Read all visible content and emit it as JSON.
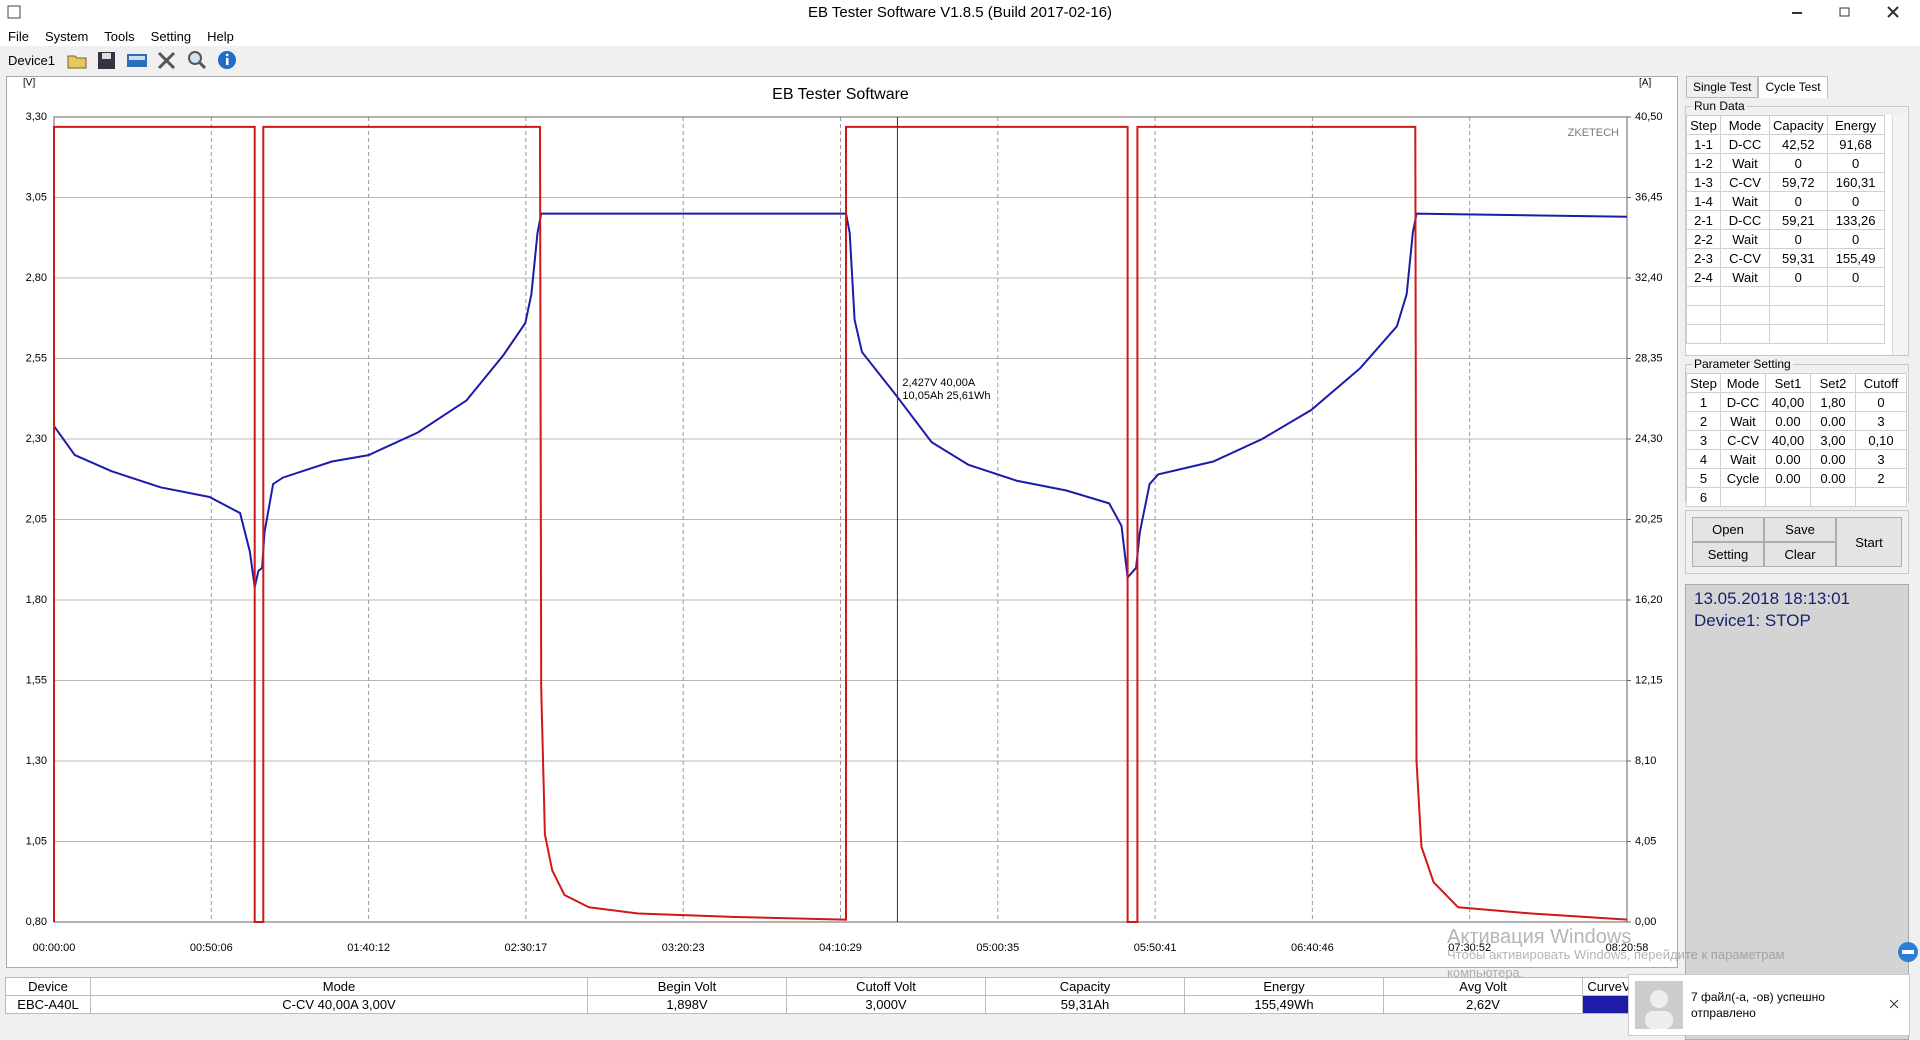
{
  "window": {
    "title": "EB Tester Software V1.8.5 (Build 2017-02-16)"
  },
  "menu": [
    "File",
    "System",
    "Tools",
    "Setting",
    "Help"
  ],
  "toolbar": {
    "device": "Device1"
  },
  "chart_data": {
    "type": "line",
    "title": "EB Tester Software",
    "watermark": "ZKETECH",
    "y_label": "[V]",
    "y2_label": "[A]",
    "xlim": [
      0,
      30058
    ],
    "xticks": [
      {
        "value": 0,
        "label": "00:00:00"
      },
      {
        "value": 3006,
        "label": "00:50:06"
      },
      {
        "value": 6012,
        "label": "01:40:12"
      },
      {
        "value": 9017,
        "label": "02:30:17"
      },
      {
        "value": 12023,
        "label": "03:20:23"
      },
      {
        "value": 15029,
        "label": "04:10:29"
      },
      {
        "value": 18035,
        "label": "05:00:35"
      },
      {
        "value": 21041,
        "label": "05:50:41"
      },
      {
        "value": 24046,
        "label": "06:40:46"
      },
      {
        "value": 27052,
        "label": "07:30:52"
      },
      {
        "value": 30058,
        "label": "08:20:58"
      }
    ],
    "ylim": [
      0.8,
      3.3
    ],
    "yticks": [
      {
        "value": 0.8,
        "label": "0,80"
      },
      {
        "value": 1.05,
        "label": "1,05"
      },
      {
        "value": 1.3,
        "label": "1,30"
      },
      {
        "value": 1.55,
        "label": "1,55"
      },
      {
        "value": 1.8,
        "label": "1,80"
      },
      {
        "value": 2.05,
        "label": "2,05"
      },
      {
        "value": 2.3,
        "label": "2,30"
      },
      {
        "value": 2.55,
        "label": "2,55"
      },
      {
        "value": 2.8,
        "label": "2,80"
      },
      {
        "value": 3.05,
        "label": "3,05"
      },
      {
        "value": 3.3,
        "label": "3,30"
      }
    ],
    "y2lim": [
      0,
      40.5
    ],
    "y2ticks": [
      {
        "value": 0,
        "label": "0,00"
      },
      {
        "value": 4.05,
        "label": "4,05"
      },
      {
        "value": 8.1,
        "label": "8,10"
      },
      {
        "value": 12.15,
        "label": "12,15"
      },
      {
        "value": 16.2,
        "label": "16,20"
      },
      {
        "value": 20.25,
        "label": "20,25"
      },
      {
        "value": 24.3,
        "label": "24,30"
      },
      {
        "value": 28.35,
        "label": "28,35"
      },
      {
        "value": 32.4,
        "label": "32,40"
      },
      {
        "value": 36.45,
        "label": "36,45"
      },
      {
        "value": 40.5,
        "label": "40,50"
      }
    ],
    "grid": true,
    "series": [
      {
        "color": "#1c1ca8",
        "x": [
          0,
          398,
          1099,
          2035,
          2971,
          3556,
          3743,
          3836,
          3906,
          3977,
          4023,
          4187,
          4374,
          5310,
          6012,
          6947,
          7883,
          8585,
          9006,
          9123,
          9240,
          9310,
          15134,
          15205,
          15298,
          15439,
          16070,
          16772,
          17474,
          18410,
          19345,
          20164,
          20398,
          20515,
          20678,
          20749,
          20936,
          21099,
          22152,
          23088,
          24023,
          24959,
          25661,
          25848,
          25965,
          26035,
          30058
        ],
        "values": [
          2.34,
          2.25,
          2.2,
          2.15,
          2.12,
          2.07,
          1.95,
          1.84,
          1.89,
          1.9,
          2.01,
          2.16,
          2.18,
          2.23,
          2.25,
          2.32,
          2.42,
          2.56,
          2.66,
          2.75,
          2.94,
          3.0,
          3.0,
          2.94,
          2.67,
          2.57,
          2.44,
          2.29,
          2.22,
          2.17,
          2.14,
          2.1,
          2.03,
          1.87,
          1.9,
          2.01,
          2.16,
          2.19,
          2.23,
          2.3,
          2.39,
          2.52,
          2.65,
          2.75,
          2.94,
          3.0,
          2.99
        ]
      },
      {
        "color": "#d01818",
        "axis": "y2",
        "x": [
          0,
          0,
          3836,
          3836,
          4000,
          4000,
          9287,
          9310,
          9380,
          9520,
          9755,
          10222,
          11158,
          13029,
          15088,
          15134,
          15134,
          20515,
          20515,
          20702,
          20702,
          26012,
          26035,
          26129,
          26363,
          26831,
          28234,
          30058
        ],
        "values": [
          0,
          40,
          40,
          0,
          0,
          40,
          40,
          11.8,
          4.4,
          2.6,
          1.36,
          0.74,
          0.43,
          0.25,
          0.12,
          0.12,
          40,
          40,
          0,
          0,
          40,
          40,
          8.1,
          3.8,
          2.0,
          0.74,
          0.43,
          0.12
        ]
      }
    ],
    "cursor": {
      "x": 16117,
      "text": [
        "2,427V  40,00A",
        "10,05Ah 25,61Wh"
      ]
    }
  },
  "tabs": [
    "Single Test",
    "Cycle Test"
  ],
  "run_data": {
    "title": "Run Data",
    "columns": [
      "Step",
      "Mode",
      "Capacity",
      "Energy"
    ],
    "rows": [
      [
        "1-1",
        "D-CC",
        "42,52",
        "91,68"
      ],
      [
        "1-2",
        "Wait",
        "0",
        "0"
      ],
      [
        "1-3",
        "C-CV",
        "59,72",
        "160,31"
      ],
      [
        "1-4",
        "Wait",
        "0",
        "0"
      ],
      [
        "2-1",
        "D-CC",
        "59,21",
        "133,26"
      ],
      [
        "2-2",
        "Wait",
        "0",
        "0"
      ],
      [
        "2-3",
        "C-CV",
        "59,31",
        "155,49"
      ],
      [
        "2-4",
        "Wait",
        "0",
        "0"
      ]
    ]
  },
  "parameter_setting": {
    "title": "Parameter Setting",
    "columns": [
      "Step",
      "Mode",
      "Set1",
      "Set2",
      "Cutoff"
    ],
    "rows": [
      [
        "1",
        "D-CC",
        "40,00",
        "1,80",
        "0"
      ],
      [
        "2",
        "Wait",
        "0.00",
        "0.00",
        "3"
      ],
      [
        "3",
        "C-CV",
        "40,00",
        "3,00",
        "0,10"
      ],
      [
        "4",
        "Wait",
        "0.00",
        "0.00",
        "3"
      ],
      [
        "5",
        "Cycle",
        "0.00",
        "0.00",
        "2"
      ],
      [
        "6"
      ]
    ]
  },
  "buttons": {
    "open": "Open",
    "save": "Save",
    "setting": "Setting",
    "clear": "Clear",
    "start": "Start"
  },
  "status": {
    "datetime": "13.05.2018 18:13:01",
    "state": "Device1: STOP"
  },
  "summary_table": {
    "columns": [
      "Device",
      "Mode",
      "Begin Volt",
      "Cutoff Volt",
      "Capacity",
      "Energy",
      "Avg Volt",
      "CurveV"
    ],
    "row": [
      "EBC-A40L",
      "C-CV  40,00A  3,00V",
      "1,898V",
      "3,000V",
      "59,31Ah",
      "155,49Wh",
      "2,62V"
    ]
  },
  "activation": [
    "Активация Windows",
    "Чтобы активировать Windows, перейдите к параметрам",
    "компьютера."
  ],
  "notification": {
    "text": "7 файл(-а, -ов) успешно отправлено"
  }
}
